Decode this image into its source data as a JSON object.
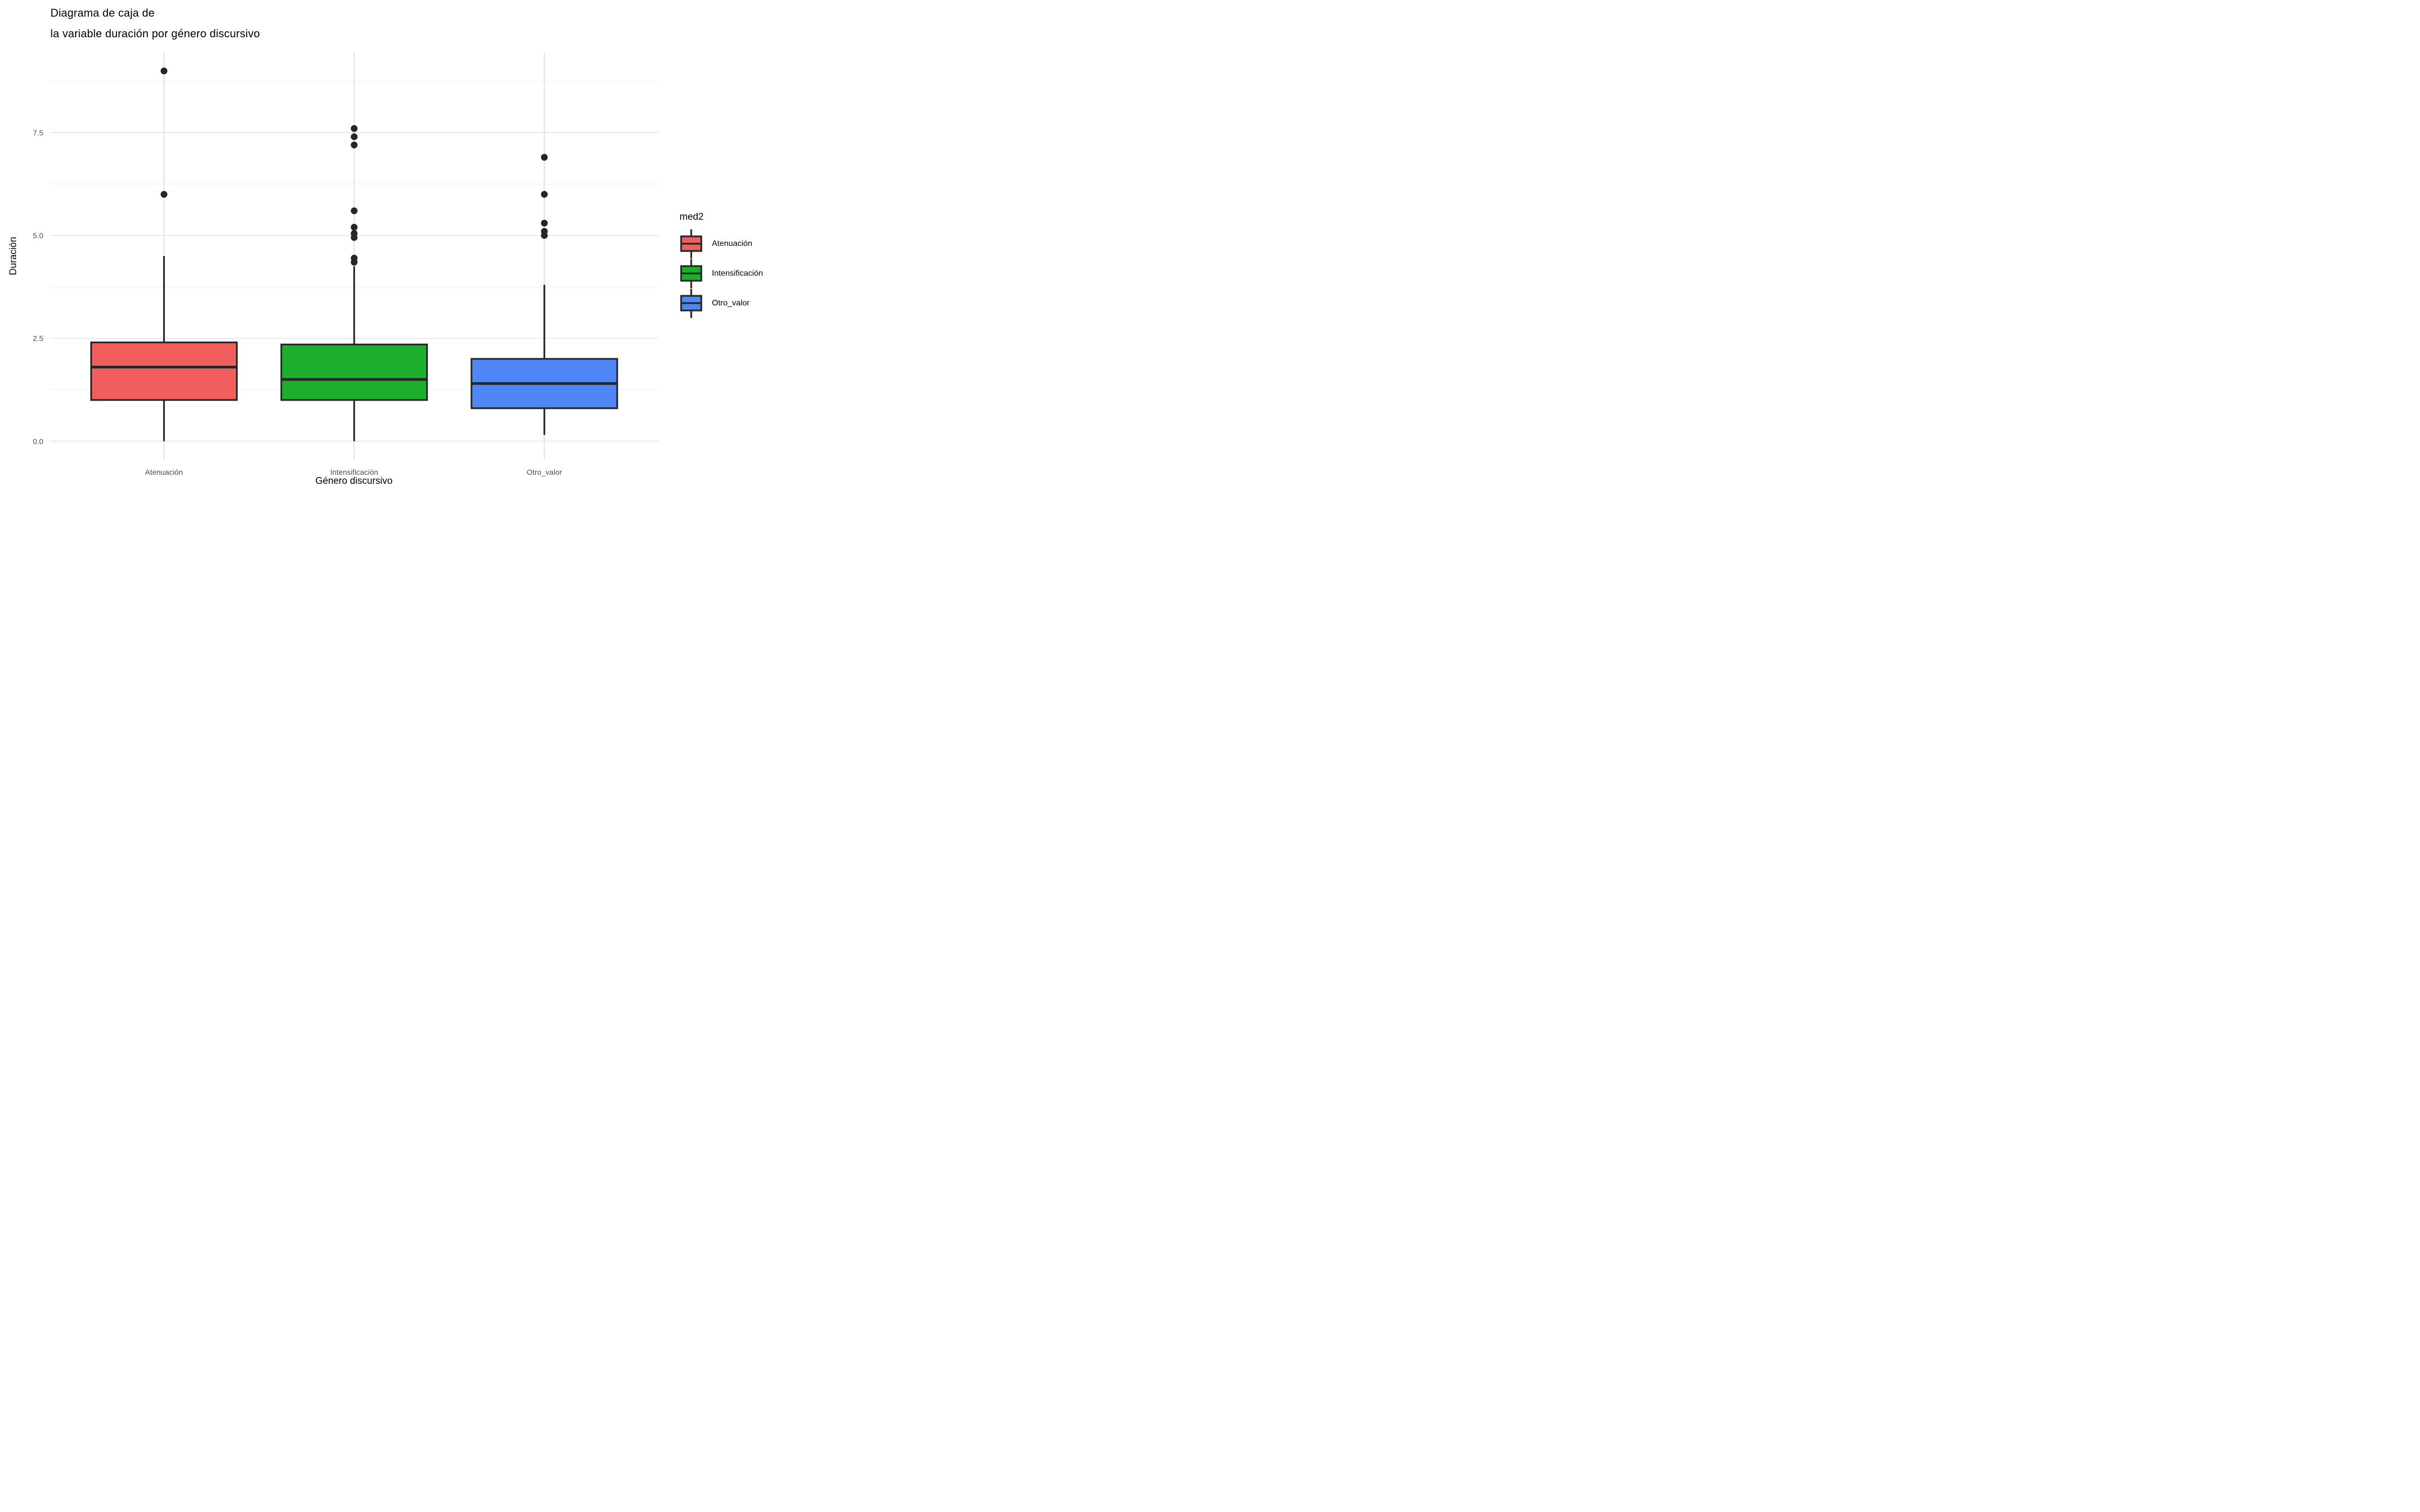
{
  "title": "Diagrama de caja de\n la variable duración por género discursivo",
  "chart_data": {
    "type": "boxplot",
    "title": "Diagrama de caja de\n la variable duración por género discursivo",
    "xlabel": "Género discursivo",
    "ylabel": "Duración",
    "legend_title": "med2",
    "legend_position": "right",
    "categories": [
      "Atenuación",
      "Intensificación",
      "Otro_valor"
    ],
    "ylim": [
      -0.45,
      9.45
    ],
    "y_ticks": [
      0.0,
      2.5,
      5.0,
      7.5
    ],
    "y_tick_labels": [
      "0.0",
      "2.5",
      "5.0",
      "7.5"
    ],
    "y_minor_ticks": [
      1.25,
      3.75,
      6.25,
      8.75
    ],
    "grid": "major-and-minor",
    "series": [
      {
        "name": "Atenuación",
        "fill": "#F25E5B",
        "whisker_low": 0.0,
        "q1": 1.0,
        "median": 1.8,
        "q3": 2.4,
        "whisker_high": 4.5,
        "outliers": [
          6.0,
          9.0
        ]
      },
      {
        "name": "Intensificación",
        "fill": "#1BAF2C",
        "whisker_low": 0.0,
        "q1": 1.0,
        "median": 1.5,
        "q3": 2.35,
        "whisker_high": 4.25,
        "outliers": [
          4.35,
          4.45,
          4.95,
          5.05,
          5.2,
          5.6,
          7.2,
          7.4,
          7.6
        ]
      },
      {
        "name": "Otro_valor",
        "fill": "#4F86F8",
        "whisker_low": 0.15,
        "q1": 0.8,
        "median": 1.4,
        "q3": 2.0,
        "whisker_high": 3.8,
        "outliers": [
          5.0,
          5.1,
          5.3,
          6.0,
          6.9
        ]
      }
    ],
    "colors": {
      "stroke": "#262626",
      "grid_major": "#E5E5E5",
      "grid_minor": "#EDEDED",
      "tick_label": "#4D4D4D",
      "background": "#FFFFFF"
    }
  }
}
